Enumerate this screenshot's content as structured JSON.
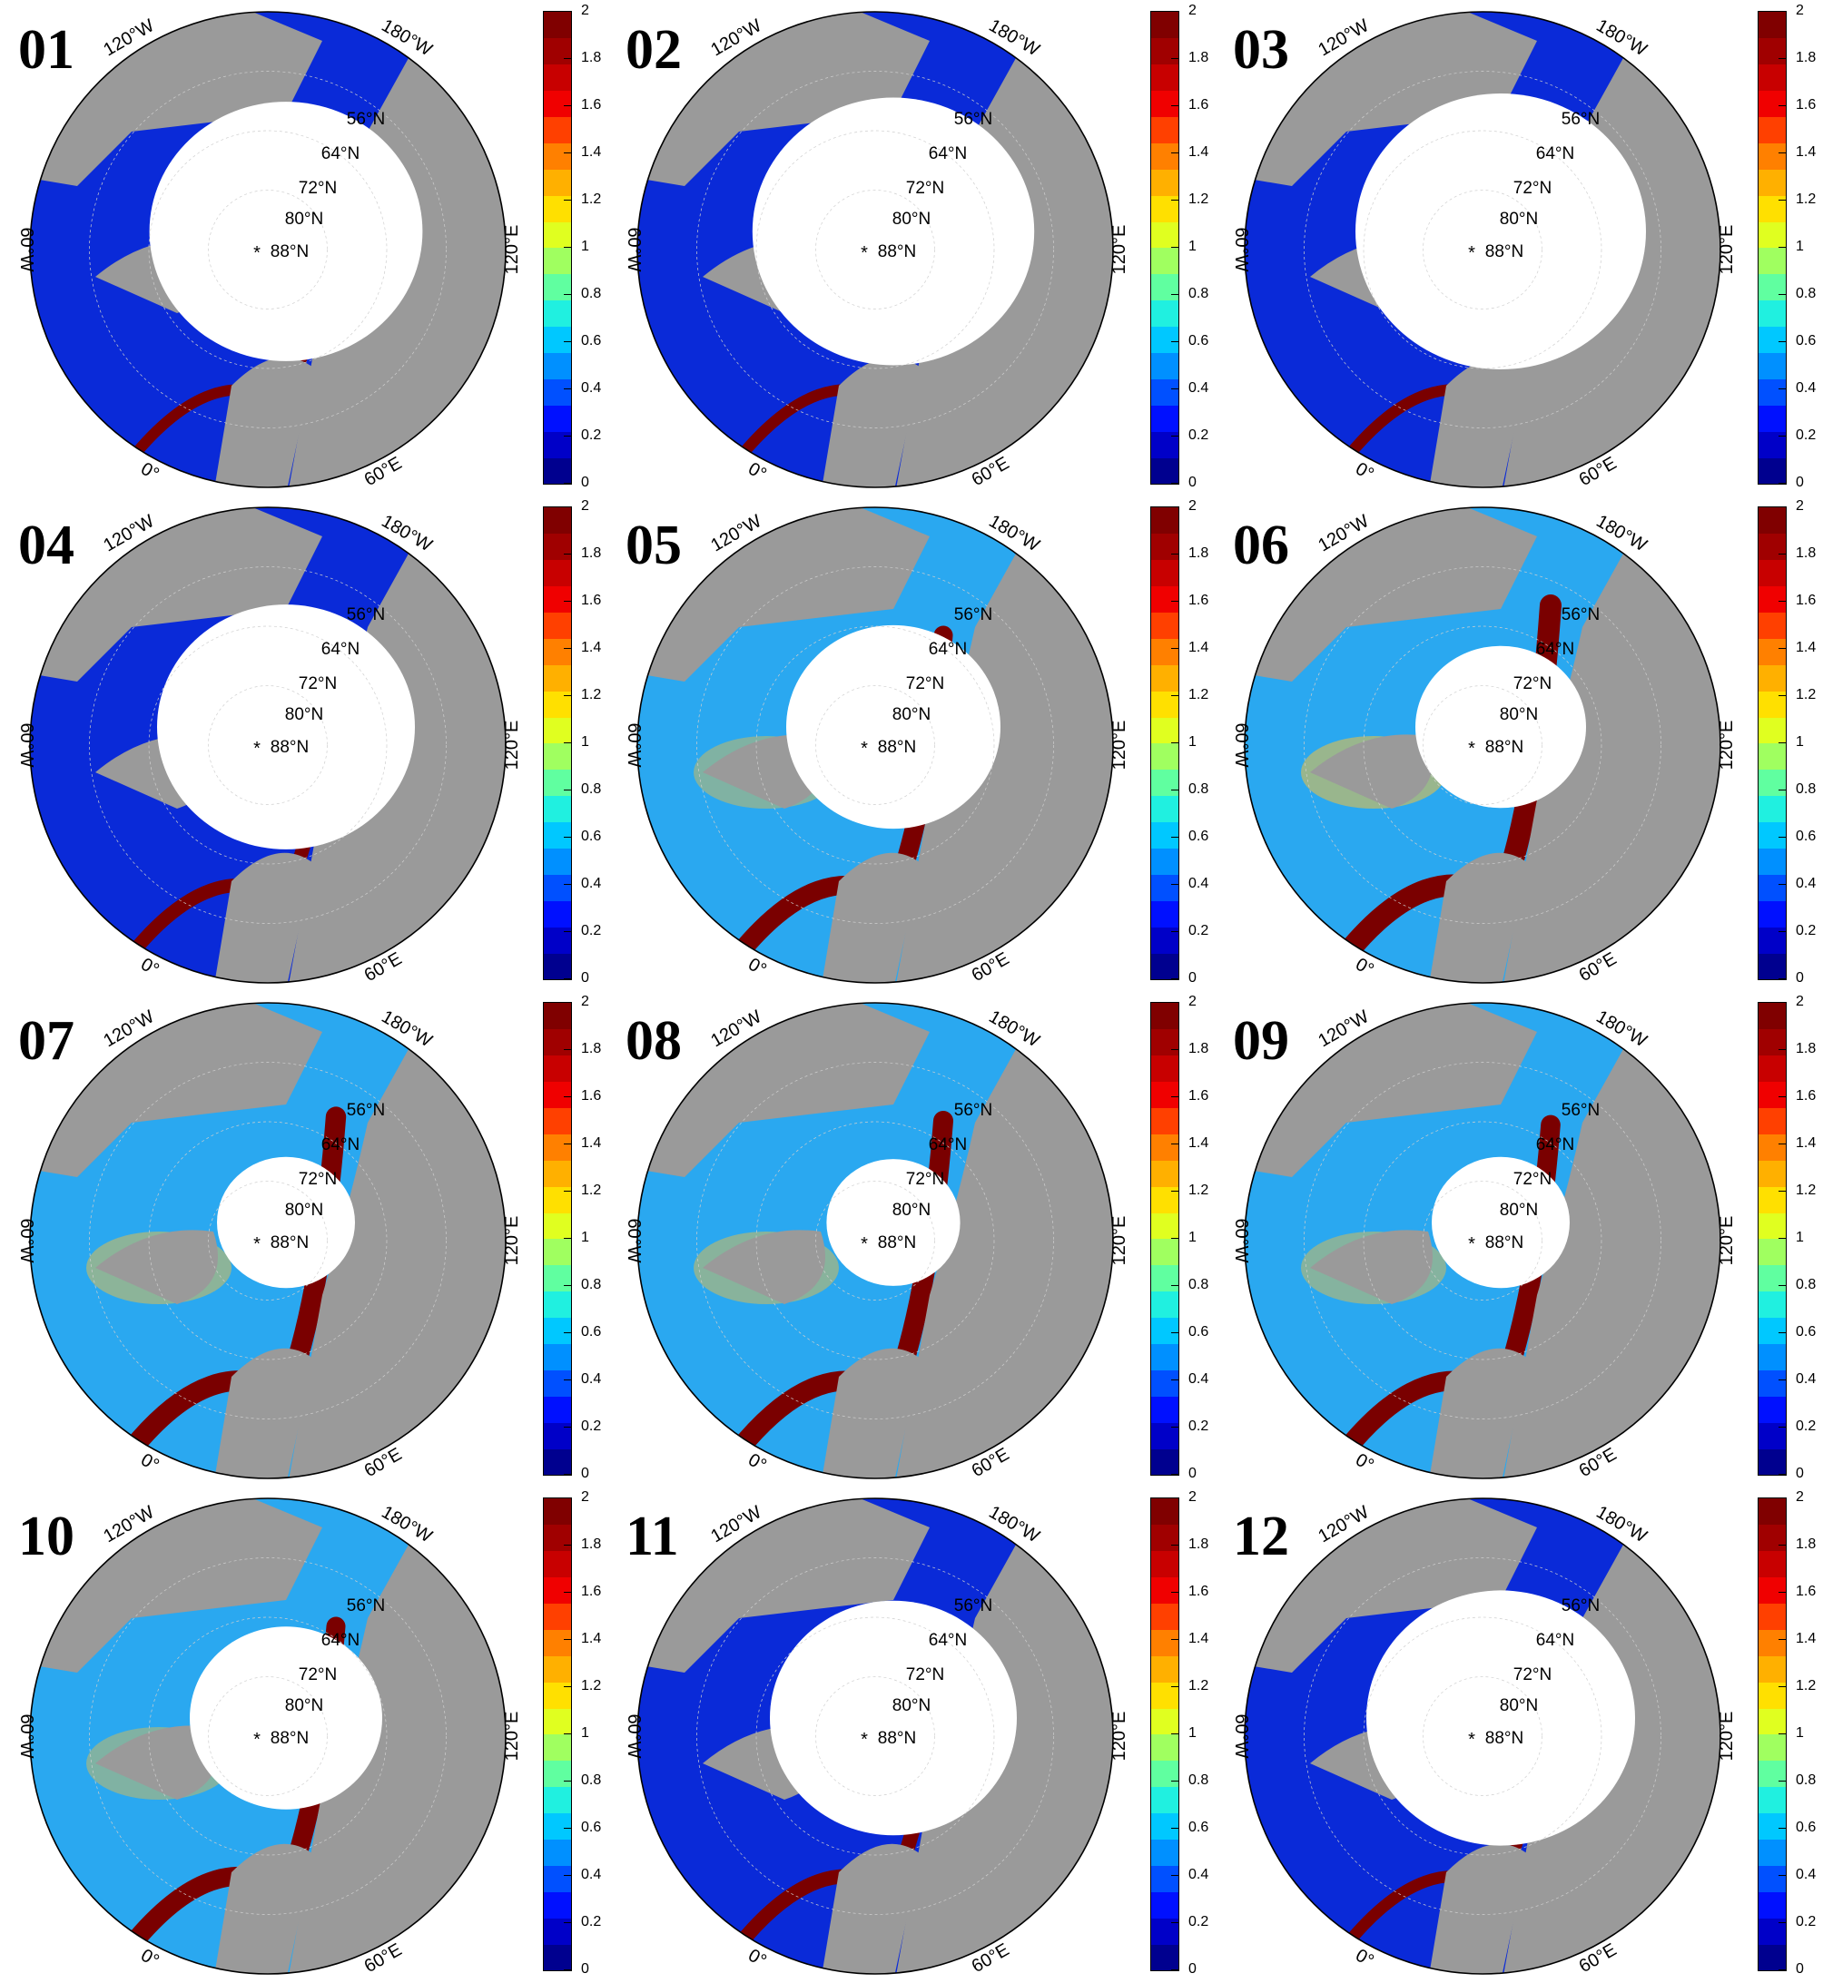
{
  "panels": [
    {
      "month": "01",
      "ice": 0.92,
      "warm": 0.1
    },
    {
      "month": "02",
      "ice": 0.96,
      "warm": 0.12
    },
    {
      "month": "03",
      "ice": 1.0,
      "warm": 0.12
    },
    {
      "month": "04",
      "ice": 0.85,
      "warm": 0.25
    },
    {
      "month": "05",
      "ice": 0.65,
      "warm": 0.55
    },
    {
      "month": "06",
      "ice": 0.45,
      "warm": 0.7
    },
    {
      "month": "07",
      "ice": 0.3,
      "warm": 0.62
    },
    {
      "month": "08",
      "ice": 0.28,
      "warm": 0.6
    },
    {
      "month": "09",
      "ice": 0.3,
      "warm": 0.58
    },
    {
      "month": "10",
      "ice": 0.55,
      "warm": 0.55
    },
    {
      "month": "11",
      "ice": 0.8,
      "warm": 0.3
    },
    {
      "month": "12",
      "ice": 0.9,
      "warm": 0.15
    }
  ],
  "map_labels": {
    "lon_120w": "120°W",
    "lon_180w": "180°W",
    "lon_60w": "60°W",
    "lon_120e": "120°E",
    "lon_0": "0°",
    "lon_60e": "60°E",
    "lat_56n": "56°N",
    "lat_64n": "64°N",
    "lat_72n": "72°N",
    "lat_80n": "80°N",
    "lat_88n": "88°N",
    "pole": "*"
  },
  "colorbar": {
    "ticks": [
      "0",
      "0.2",
      "0.4",
      "0.6",
      "0.8",
      "1",
      "1.2",
      "1.4",
      "1.6",
      "1.8",
      "2"
    ],
    "min": 0,
    "max": 2,
    "colors": [
      "#00008f",
      "#0000c8",
      "#0010ff",
      "#0050ff",
      "#0090ff",
      "#00c8ff",
      "#20f0e0",
      "#60ffa0",
      "#a0ff60",
      "#e0ff20",
      "#ffe000",
      "#ffb000",
      "#ff8000",
      "#ff4000",
      "#f00000",
      "#c80000",
      "#a00000",
      "#800000"
    ]
  },
  "colors": {
    "land": "#9a9a9a",
    "ice": "#ffffff",
    "low": "#0a2ad8",
    "mid": "#2aa8f0",
    "high": "#7a0000"
  }
}
